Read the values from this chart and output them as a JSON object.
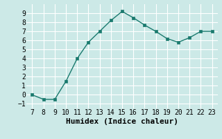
{
  "x": [
    7,
    8,
    9,
    10,
    11,
    12,
    13,
    14,
    15,
    16,
    17,
    18,
    19,
    20,
    21,
    22,
    23
  ],
  "y": [
    0.0,
    -0.5,
    -0.5,
    1.5,
    4.0,
    5.8,
    7.0,
    8.2,
    9.2,
    8.5,
    7.7,
    7.0,
    6.2,
    5.8,
    6.3,
    7.0,
    7.0
  ],
  "xlabel": "Humidex (Indice chaleur)",
  "ylim": [
    -1.5,
    10
  ],
  "xlim": [
    6.5,
    23.5
  ],
  "yticks": [
    -1,
    0,
    1,
    2,
    3,
    4,
    5,
    6,
    7,
    8,
    9
  ],
  "xticks": [
    7,
    8,
    9,
    10,
    11,
    12,
    13,
    14,
    15,
    16,
    17,
    18,
    19,
    20,
    21,
    22,
    23
  ],
  "line_color": "#1a7a6e",
  "marker_color": "#1a7a6e",
  "bg_color": "#cce9e7",
  "grid_color": "#ffffff",
  "xlabel_fontsize": 8,
  "tick_fontsize": 7
}
